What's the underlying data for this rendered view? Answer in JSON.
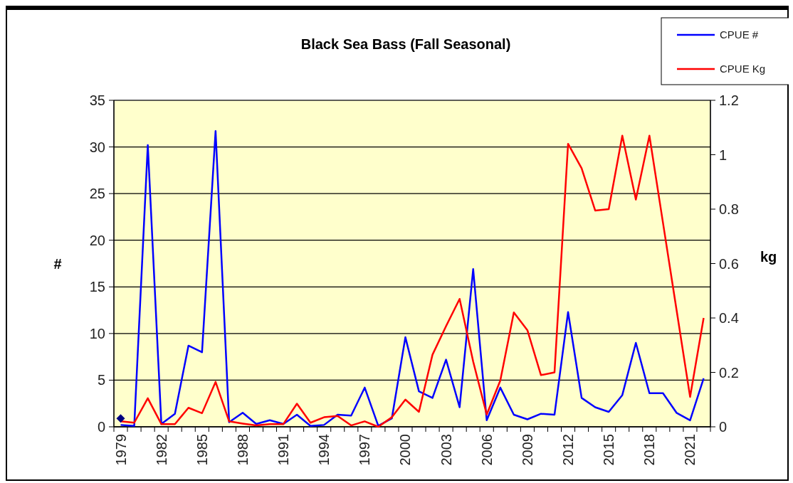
{
  "chart_data": {
    "type": "line",
    "title": "Black Sea Bass  (Fall Seasonal)",
    "ylabel": "#",
    "y2label": "kg",
    "categories": [
      "1979",
      null,
      null,
      "1982",
      null,
      null,
      "1985",
      null,
      null,
      "1988",
      null,
      null,
      "1991",
      null,
      null,
      "1994",
      null,
      null,
      "1997",
      null,
      null,
      "2000",
      null,
      null,
      "2003",
      null,
      null,
      "2006",
      null,
      null,
      "2009",
      null,
      null,
      "2012",
      null,
      null,
      "2015",
      null,
      null,
      "2018",
      null,
      null,
      "2021",
      null
    ],
    "series": [
      {
        "name": "CPUE #",
        "color": "#0000ff",
        "values": [
          0.2,
          0.1,
          30.2,
          0.3,
          1.4,
          8.7,
          8.0,
          31.7,
          0.5,
          1.5,
          0.3,
          0.7,
          0.3,
          1.3,
          0.1,
          0.2,
          1.3,
          1.2,
          4.2,
          0.1,
          0.9,
          9.6,
          3.8,
          3.1,
          7.2,
          2.1,
          16.9,
          0.7,
          4.2,
          1.3,
          0.8,
          1.4,
          1.3,
          12.3,
          3.1,
          2.1,
          1.6,
          3.4,
          9.0,
          3.6,
          3.6,
          1.5,
          0.7,
          5.2
        ]
      },
      {
        "name": "CPUE Kg",
        "color": "#ff0000",
        "axis": "y2",
        "values": [
          0.02,
          0.015,
          0.105,
          0.01,
          0.01,
          0.07,
          0.05,
          0.165,
          0.02,
          0.012,
          0.005,
          0.01,
          0.01,
          0.085,
          0.015,
          0.035,
          0.04,
          0.005,
          0.02,
          0.0,
          0.035,
          0.1,
          0.055,
          0.265,
          0.37,
          0.47,
          0.24,
          0.045,
          0.17,
          0.42,
          0.355,
          0.19,
          0.2,
          1.04,
          0.95,
          0.795,
          0.8,
          1.07,
          0.835,
          1.07,
          0.75,
          0.43,
          0.11,
          0.4
        ]
      },
      {
        "type": "scatter",
        "color": "#000080",
        "marker": "diamond",
        "values": [
          0.9,
          null,
          null,
          null,
          null,
          null,
          null,
          null,
          null,
          null,
          null,
          null,
          null,
          null,
          null,
          null,
          null,
          null,
          null,
          null,
          null,
          null,
          null,
          null,
          null,
          null,
          null,
          null,
          null,
          null,
          null,
          null,
          null,
          null,
          null,
          null,
          null,
          null,
          null,
          null,
          null,
          null,
          null,
          null
        ]
      }
    ],
    "ylim": [
      0,
      35
    ],
    "yticks": [
      0,
      5,
      10,
      15,
      20,
      25,
      30,
      35
    ],
    "y2lim": [
      0,
      1.2
    ],
    "y2ticks": [
      0,
      0.2,
      0.4,
      0.6,
      0.8,
      1,
      1.2
    ],
    "grid": "y",
    "legend": "top right"
  }
}
